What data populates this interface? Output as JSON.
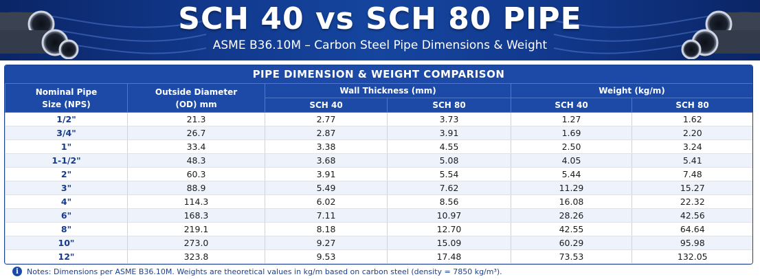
{
  "header": {
    "title": "SCH 40 vs SCH 80 PIPE",
    "subtitle": "ASME B36.10M – Carbon Steel Pipe Dimensions & Weight"
  },
  "table": {
    "caption": "PIPE DIMENSION & WEIGHT COMPARISON",
    "col_nps_line1": "Nominal Pipe",
    "col_nps_line2": "Size (NPS)",
    "col_od_line1": "Outside Diameter",
    "col_od_line2": "(OD) mm",
    "group_wall": "Wall Thickness (mm)",
    "group_weight": "Weight (kg/m)",
    "sub_sch40_wall": "SCH 40",
    "sub_sch80_wall": "SCH 80",
    "sub_sch40_weight": "SCH 40",
    "sub_sch80_weight": "SCH 80",
    "rows": [
      [
        "1/2\"",
        "21.3",
        "2.77",
        "3.73",
        "1.27",
        "1.62"
      ],
      [
        "3/4\"",
        "26.7",
        "2.87",
        "3.91",
        "1.69",
        "2.20"
      ],
      [
        "1\"",
        "33.4",
        "3.38",
        "4.55",
        "2.50",
        "3.24"
      ],
      [
        "1-1/2\"",
        "48.3",
        "3.68",
        "5.08",
        "4.05",
        "5.41"
      ],
      [
        "2\"",
        "60.3",
        "3.91",
        "5.54",
        "5.44",
        "7.48"
      ],
      [
        "3\"",
        "88.9",
        "5.49",
        "7.62",
        "11.29",
        "15.27"
      ],
      [
        "4\"",
        "114.3",
        "6.02",
        "8.56",
        "16.08",
        "22.32"
      ],
      [
        "6\"",
        "168.3",
        "7.11",
        "10.97",
        "28.26",
        "42.56"
      ],
      [
        "8\"",
        "219.1",
        "8.18",
        "12.70",
        "42.55",
        "64.64"
      ],
      [
        "10\"",
        "273.0",
        "9.27",
        "15.09",
        "60.29",
        "95.98"
      ],
      [
        "12\"",
        "323.8",
        "9.53",
        "17.48",
        "73.53",
        "132.05"
      ]
    ]
  },
  "notes": {
    "icon": "info-icon",
    "icon_glyph": "i",
    "text": "Notes: Dimensions per ASME B36.10M. Weights are theoretical values in kg/m based on carbon steel (density = 7850 kg/m³)."
  },
  "colors": {
    "banner": "#123a8f",
    "header_fill": "#1c4aa6",
    "nps_text": "#143a8c"
  }
}
